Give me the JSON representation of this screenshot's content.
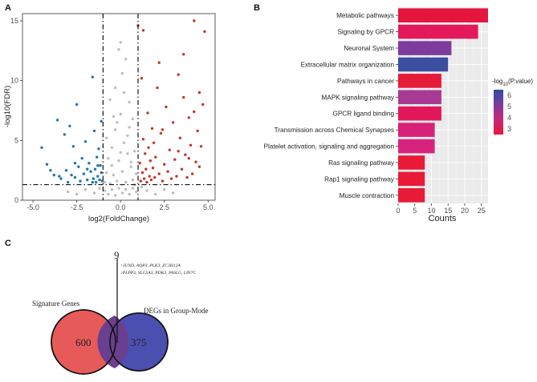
{
  "panels": {
    "a": {
      "letter": "A",
      "chart_data": {
        "type": "scatter",
        "title": "",
        "xlabel": "log2(FoldChange)",
        "ylabel": "-log10(FDR)",
        "xlim": [
          -5.6,
          5.4
        ],
        "ylim": [
          0,
          15.6
        ],
        "xticks": [
          "-5.0",
          "-2.5",
          "0.0",
          "2.5",
          "5.0"
        ],
        "xtick_values": [
          -5,
          -2.5,
          0,
          2.5,
          5
        ],
        "yticks": [
          "0",
          "5",
          "10",
          "15"
        ],
        "ytick_values": [
          0,
          5,
          10,
          15
        ],
        "thresholds": {
          "log2fc": [
            -1,
            1
          ],
          "fdr": 1.3
        },
        "colors": {
          "down": "#1f77b4",
          "up": "#c0392b",
          "ns": "#bdbdbd"
        },
        "series": [
          {
            "name": "down",
            "points": [
              [
                -4.5,
                4.4
              ],
              [
                -4.2,
                3.0
              ],
              [
                -3.8,
                2.1
              ],
              [
                -3.6,
                6.7
              ],
              [
                -3.4,
                1.8
              ],
              [
                -3.2,
                5.5
              ],
              [
                -3.1,
                2.5
              ],
              [
                -3.0,
                1.5
              ],
              [
                -2.9,
                6.2
              ],
              [
                -2.8,
                2.1
              ],
              [
                -2.7,
                4.5
              ],
              [
                -2.6,
                1.9
              ],
              [
                -2.5,
                8.0
              ],
              [
                -2.4,
                2.8
              ],
              [
                -2.3,
                1.6
              ],
              [
                -2.2,
                3.5
              ],
              [
                -2.1,
                2.2
              ],
              [
                -2.0,
                4.9
              ],
              [
                -1.9,
                1.7
              ],
              [
                -1.8,
                3.1
              ],
              [
                -1.7,
                2.4
              ],
              [
                -1.6,
                10.3
              ],
              [
                -1.55,
                1.8
              ],
              [
                -1.5,
                5.8
              ],
              [
                -1.45,
                2.6
              ],
              [
                -1.4,
                1.5
              ],
              [
                -1.35,
                3.6
              ],
              [
                -1.3,
                2.0
              ],
              [
                -1.25,
                4.3
              ],
              [
                -1.2,
                1.7
              ],
              [
                -1.15,
                2.9
              ],
              [
                -1.1,
                6.6
              ],
              [
                -1.1,
                2.3
              ],
              [
                -1.05,
                1.6
              ],
              [
                -4.0,
                2.5
              ],
              [
                -3.5,
                2.0
              ],
              [
                -2.6,
                3.1
              ],
              [
                -1.9,
                2.6
              ],
              [
                -1.6,
                1.5
              ],
              [
                -1.3,
                2.9
              ]
            ]
          },
          {
            "name": "up",
            "points": [
              [
                1.0,
                14.6
              ],
              [
                1.1,
                3.1
              ],
              [
                1.15,
                1.6
              ],
              [
                1.2,
                10.2
              ],
              [
                1.25,
                2.3
              ],
              [
                1.3,
                5.1
              ],
              [
                1.35,
                1.8
              ],
              [
                1.4,
                3.9
              ],
              [
                1.45,
                2.6
              ],
              [
                1.5,
                1.5
              ],
              [
                1.55,
                7.3
              ],
              [
                1.6,
                4.4
              ],
              [
                1.65,
                2.0
              ],
              [
                1.7,
                3.3
              ],
              [
                1.75,
                1.7
              ],
              [
                1.8,
                6.0
              ],
              [
                1.85,
                2.7
              ],
              [
                1.9,
                4.8
              ],
              [
                1.95,
                1.9
              ],
              [
                2.0,
                3.6
              ],
              [
                2.1,
                9.4
              ],
              [
                2.2,
                2.2
              ],
              [
                2.3,
                5.6
              ],
              [
                2.4,
                1.6
              ],
              [
                2.5,
                3.0
              ],
              [
                2.6,
                7.8
              ],
              [
                2.7,
                2.4
              ],
              [
                2.8,
                4.2
              ],
              [
                2.9,
                1.8
              ],
              [
                3.0,
                6.5
              ],
              [
                3.1,
                3.4
              ],
              [
                3.2,
                2.0
              ],
              [
                3.3,
                10.5
              ],
              [
                3.4,
                5.2
              ],
              [
                3.5,
                2.6
              ],
              [
                3.6,
                8.6
              ],
              [
                3.7,
                3.8
              ],
              [
                3.8,
                1.9
              ],
              [
                3.9,
                6.9
              ],
              [
                4.0,
                4.6
              ],
              [
                4.1,
                2.2
              ],
              [
                4.2,
                7.4
              ],
              [
                4.3,
                3.2
              ],
              [
                4.4,
                5.8
              ],
              [
                4.5,
                2.8
              ],
              [
                4.6,
                4.5
              ],
              [
                4.7,
                8.0
              ],
              [
                4.8,
                14.1
              ],
              [
                4.2,
                15.0
              ],
              [
                3.9,
                3.5
              ],
              [
                2.2,
                11.5
              ],
              [
                1.3,
                14.2
              ],
              [
                3.6,
                12.2
              ],
              [
                4.5,
                9.0
              ],
              [
                2.4,
                5.9
              ],
              [
                3.3,
                4.1
              ]
            ]
          },
          {
            "name": "ns",
            "points": [
              [
                -0.9,
                1.5
              ],
              [
                -0.8,
                2.3
              ],
              [
                -0.7,
                3.5
              ],
              [
                -0.6,
                1.4
              ],
              [
                -0.5,
                4.4
              ],
              [
                -0.4,
                2.1
              ],
              [
                -0.3,
                5.9
              ],
              [
                -0.2,
                1.6
              ],
              [
                -0.1,
                3.3
              ],
              [
                0.0,
                7.2
              ],
              [
                0.1,
                2.4
              ],
              [
                0.2,
                4.8
              ],
              [
                0.3,
                1.5
              ],
              [
                0.4,
                3.9
              ],
              [
                0.5,
                6.1
              ],
              [
                0.6,
                2.8
              ],
              [
                0.7,
                1.7
              ],
              [
                0.8,
                4.1
              ],
              [
                0.9,
                2.2
              ],
              [
                -0.6,
                8.4
              ],
              [
                -0.3,
                9.4
              ],
              [
                0.1,
                10.6
              ],
              [
                0.3,
                11.8
              ],
              [
                0.0,
                13.2
              ],
              [
                -0.1,
                12.6
              ],
              [
                0.2,
                9.0
              ],
              [
                -0.4,
                7.0
              ],
              [
                0.5,
                8.2
              ],
              [
                0.7,
                6.8
              ],
              [
                -0.8,
                5.2
              ],
              [
                0.4,
                5.4
              ],
              [
                -0.2,
                6.5
              ],
              [
                0.6,
                3.2
              ],
              [
                -0.5,
                2.9
              ],
              [
                0.0,
                4.0
              ],
              [
                0.8,
                1.3
              ],
              [
                -0.9,
                0.8
              ],
              [
                -0.7,
                0.5
              ],
              [
                -0.5,
                0.9
              ],
              [
                -0.3,
                0.4
              ],
              [
                -0.1,
                1.0
              ],
              [
                0.1,
                0.6
              ],
              [
                0.3,
                0.9
              ],
              [
                0.5,
                0.5
              ],
              [
                0.7,
                1.0
              ],
              [
                0.9,
                0.7
              ],
              [
                -1.5,
                0.6
              ],
              [
                -2.0,
                0.9
              ],
              [
                -2.5,
                0.5
              ],
              [
                1.5,
                0.8
              ],
              [
                2.0,
                0.5
              ],
              [
                2.5,
                0.9
              ],
              [
                -1.2,
                1.0
              ],
              [
                1.2,
                1.1
              ],
              [
                -3.0,
                0.7
              ],
              [
                3.0,
                0.6
              ]
            ]
          }
        ]
      }
    },
    "b": {
      "letter": "B",
      "chart_data": {
        "type": "bar",
        "orientation": "horizontal",
        "title": "",
        "xlabel": "Counts",
        "ylabel": "",
        "xlim": [
          0,
          27
        ],
        "xticks": [
          "0",
          "5",
          "10",
          "15",
          "20",
          "25"
        ],
        "xtick_values": [
          0,
          5,
          10,
          15,
          20,
          25
        ],
        "categories": [
          "Metabolic pathways",
          "Signaling by GPCR",
          "Neuronal System",
          "Extracellular matrix organization",
          "Pathways in cancer",
          "MAPK signaling pathway",
          "GPCR ligand binding",
          "Transmission across Chemical Synapses",
          "Platelet activation, signaling and aggregation",
          "Ras signaling pathway",
          "Rap1 signaling pathway",
          "Muscle contraction"
        ],
        "values": [
          27,
          24,
          16,
          15,
          13,
          13,
          13,
          11,
          11,
          8,
          8,
          8
        ],
        "colors": [
          "#e4163e",
          "#e3195b",
          "#7e3c9c",
          "#3a4fa0",
          "#e51b3a",
          "#a83a94",
          "#e2175a",
          "#da2178",
          "#d8237e",
          "#e81a35",
          "#e81a38",
          "#e81a36"
        ],
        "legend": {
          "title_prefix": "-log",
          "title_sub": "10",
          "title_suffix": "(P.value)",
          "position": "right",
          "labels": [
            "6",
            "5",
            "4",
            "3"
          ],
          "gradient": [
            "#2e4da0",
            "#7c3a9a",
            "#c42a7a",
            "#e8173a"
          ]
        }
      }
    },
    "c": {
      "letter": "C",
      "top_count": "9",
      "genes_line1": "↑JUND, AQP3, PLK3, ZC3H12A",
      "genes_line2": "↓PLPP3, SLC5A3, PDK3, FASLG, LIN7C",
      "left_set": {
        "label": "Signature Genes",
        "count": "600",
        "color": "#e75a5a"
      },
      "right_set": {
        "label": "DEGs in Group-Mode",
        "count": "375",
        "color": "#4b4fb0"
      },
      "overlap_color": "#6a3f8f"
    }
  }
}
